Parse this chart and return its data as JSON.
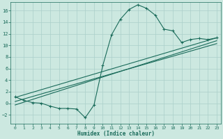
{
  "xlabel": "Humidex (Indice chaleur)",
  "bg_color": "#cce8e0",
  "grid_color": "#aacfca",
  "line_color": "#1a6b5a",
  "xlim": [
    -0.5,
    23.5
  ],
  "ylim": [
    -3.5,
    17.5
  ],
  "yticks": [
    -2,
    0,
    2,
    4,
    6,
    8,
    10,
    12,
    14,
    16
  ],
  "xticks": [
    0,
    1,
    2,
    3,
    4,
    5,
    6,
    7,
    8,
    9,
    10,
    11,
    12,
    13,
    14,
    15,
    16,
    17,
    18,
    19,
    20,
    21,
    22,
    23
  ],
  "curve_x": [
    0,
    1,
    2,
    3,
    4,
    5,
    6,
    7,
    8,
    9,
    10,
    11,
    12,
    13,
    14,
    15,
    16,
    17,
    18,
    19,
    20,
    21,
    22,
    23
  ],
  "curve_y": [
    1.1,
    0.5,
    0.1,
    0.0,
    -0.5,
    -0.9,
    -0.9,
    -1.0,
    -2.5,
    -0.3,
    6.5,
    11.8,
    14.5,
    16.2,
    17.0,
    16.4,
    15.2,
    12.8,
    12.5,
    10.5,
    11.0,
    11.2,
    11.0,
    11.3
  ],
  "line1_x": [
    0,
    23
  ],
  "line1_y": [
    1.0,
    11.3
  ],
  "line2_x": [
    0,
    23
  ],
  "line2_y": [
    0.3,
    10.3
  ],
  "line3_x": [
    0,
    23
  ],
  "line3_y": [
    -0.3,
    10.8
  ]
}
